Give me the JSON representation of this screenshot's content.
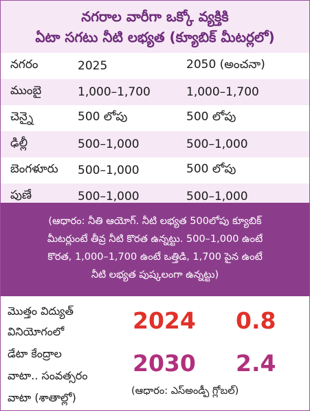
{
  "title": {
    "line1": "నగరాల వారీగా ఒక్కో వ్యక్తికి",
    "line2": "ఏటా సగటు నీటి లభ్యత (క్యూబిక్ మీటర్లలో)"
  },
  "table": {
    "headers": [
      "నగరం",
      "2025",
      "2050 (అంచనా)"
    ],
    "rows": [
      [
        "ముంబై",
        "1,000–1,700",
        "1,000–1,700"
      ],
      [
        "చెన్నై",
        "500 లోపు",
        "500 లోపు"
      ],
      [
        "ఢిల్లీ",
        "500–1,000",
        "500–1,000"
      ],
      [
        "బెంగళూరు",
        "500–1,000",
        "500 లోపు"
      ],
      [
        "పుణే",
        "500–1,000",
        "500–1,000"
      ]
    ]
  },
  "note": {
    "line1": "(ఆధారం: నీతి ఆయోగ్. నీటి లభ్యత 500లోపు క్యూబిక్",
    "line2": "మీటర్లుంటే తీవ్ర నీటి కొరత ఉన్నట్టు. 500–1,000 ఉంటే",
    "line3": "కొరత, 1,000–1,700 ఉంటే ఒత్తిడి, 1,700 పైన ఉంటే",
    "line4": "నీటి లభ్యత పుష్కలంగా ఉన్నట్టు)"
  },
  "datacenter": {
    "label_lines": [
      "మొత్తం విద్యుత్",
      "వినియోగంలో",
      "డేటా కేంద్రాల",
      "వాటా.. సంవత్సరం",
      "వాటా (శాతాల్లో)"
    ],
    "rows": [
      {
        "year": "2024",
        "value": "0.8",
        "color": "#e0312a"
      },
      {
        "year": "2030",
        "value": "2.4",
        "color": "#b0307d"
      }
    ],
    "source": "(ఆధారం: ఎస్అండ్పీ గ్లోబల్)"
  },
  "colors": {
    "header_text": "#6d2b7a",
    "band": "#f6e8f5",
    "note_bg": "#8b3d8b"
  }
}
